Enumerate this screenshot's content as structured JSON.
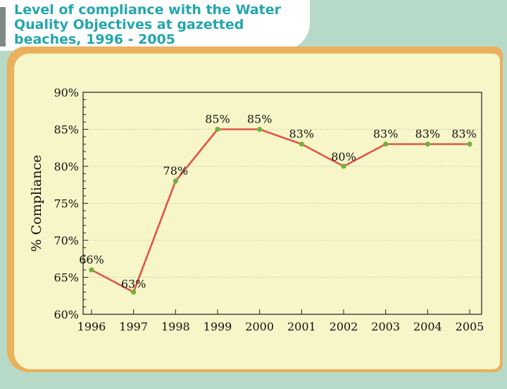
{
  "header": {
    "title": "Level of compliance with the Water Quality Objectives at gazetted beaches, 1996 - 2005"
  },
  "colors": {
    "title": "#23a6ae",
    "frame": "#b7dac8",
    "panel": "#f6f6c8",
    "panel_shadow": "#eab05c",
    "line": "#e05547",
    "marker": "#6fb33a"
  },
  "chart_data": {
    "type": "line",
    "title": "Level of compliance with the Water Quality Objectives at gazetted beaches, 1996 - 2005",
    "xlabel": "",
    "ylabel": "% Compliance",
    "categories": [
      "1996",
      "1997",
      "1998",
      "1999",
      "2000",
      "2001",
      "2002",
      "2003",
      "2004",
      "2005"
    ],
    "series": [
      {
        "name": "% Compliance",
        "values": [
          66,
          63,
          78,
          85,
          85,
          83,
          80,
          83,
          83,
          83
        ]
      }
    ],
    "data_labels": [
      "66%",
      "63%",
      "78%",
      "85%",
      "85%",
      "83%",
      "80%",
      "83%",
      "83%",
      "83%"
    ],
    "ylim": [
      60,
      90
    ],
    "yticks": [
      60,
      65,
      70,
      75,
      80,
      85,
      90
    ],
    "ytick_labels": [
      "60%",
      "65%",
      "70%",
      "75%",
      "80%",
      "85%",
      "90%"
    ],
    "grid": true
  }
}
